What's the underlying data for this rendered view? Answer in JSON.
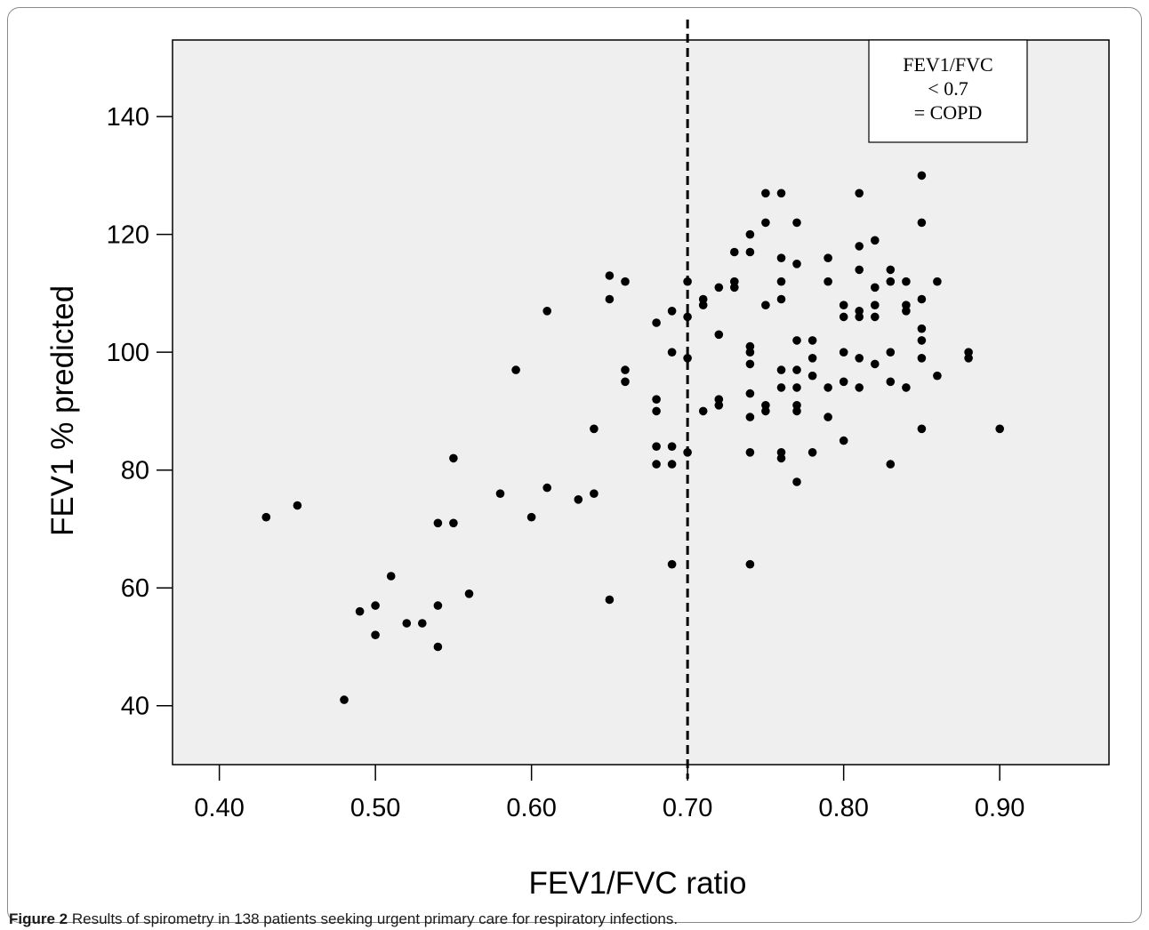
{
  "caption": {
    "label": "Figure 2",
    "text": "Results of spirometry in 138 patients seeking urgent primary care for respiratory infections."
  },
  "chart_data": {
    "type": "scatter",
    "title": "",
    "xlabel": "FEV1/FVC ratio",
    "ylabel": "FEV1 % predicted",
    "xlim": [
      0.37,
      0.97
    ],
    "ylim": [
      30,
      153
    ],
    "xticks": [
      "0.40",
      "0.50",
      "0.60",
      "0.70",
      "0.80",
      "0.90"
    ],
    "yticks": [
      "40",
      "60",
      "80",
      "100",
      "120",
      "140"
    ],
    "grid": false,
    "plot_background": "#efefef",
    "point_color": "#000000",
    "threshold_line": {
      "x": 0.7,
      "style": "dashed"
    },
    "annotation": {
      "lines": [
        "FEV1/FVC",
        "< 0.7",
        "= COPD"
      ],
      "placement": "top-right"
    },
    "points": [
      [
        0.43,
        72
      ],
      [
        0.45,
        74
      ],
      [
        0.48,
        41
      ],
      [
        0.49,
        56
      ],
      [
        0.5,
        57
      ],
      [
        0.5,
        52
      ],
      [
        0.51,
        62
      ],
      [
        0.52,
        54
      ],
      [
        0.53,
        54
      ],
      [
        0.54,
        71
      ],
      [
        0.54,
        57
      ],
      [
        0.54,
        50
      ],
      [
        0.55,
        82
      ],
      [
        0.55,
        71
      ],
      [
        0.56,
        59
      ],
      [
        0.58,
        76
      ],
      [
        0.59,
        97
      ],
      [
        0.6,
        72
      ],
      [
        0.61,
        107
      ],
      [
        0.61,
        77
      ],
      [
        0.63,
        75
      ],
      [
        0.64,
        87
      ],
      [
        0.64,
        76
      ],
      [
        0.65,
        113
      ],
      [
        0.65,
        109
      ],
      [
        0.65,
        58
      ],
      [
        0.66,
        112
      ],
      [
        0.66,
        97
      ],
      [
        0.66,
        95
      ],
      [
        0.68,
        105
      ],
      [
        0.68,
        92
      ],
      [
        0.68,
        90
      ],
      [
        0.68,
        84
      ],
      [
        0.68,
        81
      ],
      [
        0.69,
        107
      ],
      [
        0.69,
        100
      ],
      [
        0.69,
        84
      ],
      [
        0.69,
        81
      ],
      [
        0.69,
        64
      ],
      [
        0.7,
        112
      ],
      [
        0.7,
        106
      ],
      [
        0.7,
        99
      ],
      [
        0.7,
        83
      ],
      [
        0.71,
        109
      ],
      [
        0.71,
        108
      ],
      [
        0.71,
        90
      ],
      [
        0.72,
        111
      ],
      [
        0.72,
        103
      ],
      [
        0.72,
        92
      ],
      [
        0.72,
        91
      ],
      [
        0.73,
        117
      ],
      [
        0.73,
        112
      ],
      [
        0.73,
        111
      ],
      [
        0.74,
        120
      ],
      [
        0.74,
        117
      ],
      [
        0.74,
        101
      ],
      [
        0.74,
        100
      ],
      [
        0.74,
        98
      ],
      [
        0.74,
        93
      ],
      [
        0.74,
        89
      ],
      [
        0.74,
        83
      ],
      [
        0.74,
        64
      ],
      [
        0.75,
        127
      ],
      [
        0.75,
        122
      ],
      [
        0.75,
        108
      ],
      [
        0.75,
        91
      ],
      [
        0.75,
        90
      ],
      [
        0.76,
        127
      ],
      [
        0.76,
        116
      ],
      [
        0.76,
        112
      ],
      [
        0.76,
        109
      ],
      [
        0.76,
        97
      ],
      [
        0.76,
        94
      ],
      [
        0.76,
        83
      ],
      [
        0.76,
        82
      ],
      [
        0.77,
        122
      ],
      [
        0.77,
        115
      ],
      [
        0.77,
        102
      ],
      [
        0.77,
        97
      ],
      [
        0.77,
        94
      ],
      [
        0.77,
        91
      ],
      [
        0.77,
        90
      ],
      [
        0.77,
        78
      ],
      [
        0.78,
        102
      ],
      [
        0.78,
        99
      ],
      [
        0.78,
        96
      ],
      [
        0.78,
        83
      ],
      [
        0.79,
        116
      ],
      [
        0.79,
        112
      ],
      [
        0.79,
        94
      ],
      [
        0.79,
        89
      ],
      [
        0.8,
        108
      ],
      [
        0.8,
        106
      ],
      [
        0.8,
        100
      ],
      [
        0.8,
        95
      ],
      [
        0.8,
        85
      ],
      [
        0.81,
        127
      ],
      [
        0.81,
        118
      ],
      [
        0.81,
        114
      ],
      [
        0.81,
        107
      ],
      [
        0.81,
        106
      ],
      [
        0.81,
        99
      ],
      [
        0.81,
        94
      ],
      [
        0.82,
        119
      ],
      [
        0.82,
        111
      ],
      [
        0.82,
        108
      ],
      [
        0.82,
        106
      ],
      [
        0.82,
        98
      ],
      [
        0.83,
        114
      ],
      [
        0.83,
        112
      ],
      [
        0.83,
        100
      ],
      [
        0.83,
        95
      ],
      [
        0.83,
        81
      ],
      [
        0.84,
        112
      ],
      [
        0.84,
        108
      ],
      [
        0.84,
        107
      ],
      [
        0.84,
        94
      ],
      [
        0.85,
        130
      ],
      [
        0.85,
        122
      ],
      [
        0.85,
        109
      ],
      [
        0.85,
        104
      ],
      [
        0.85,
        102
      ],
      [
        0.85,
        99
      ],
      [
        0.85,
        87
      ],
      [
        0.86,
        112
      ],
      [
        0.86,
        96
      ],
      [
        0.88,
        100
      ],
      [
        0.88,
        99
      ],
      [
        0.9,
        87
      ]
    ]
  }
}
